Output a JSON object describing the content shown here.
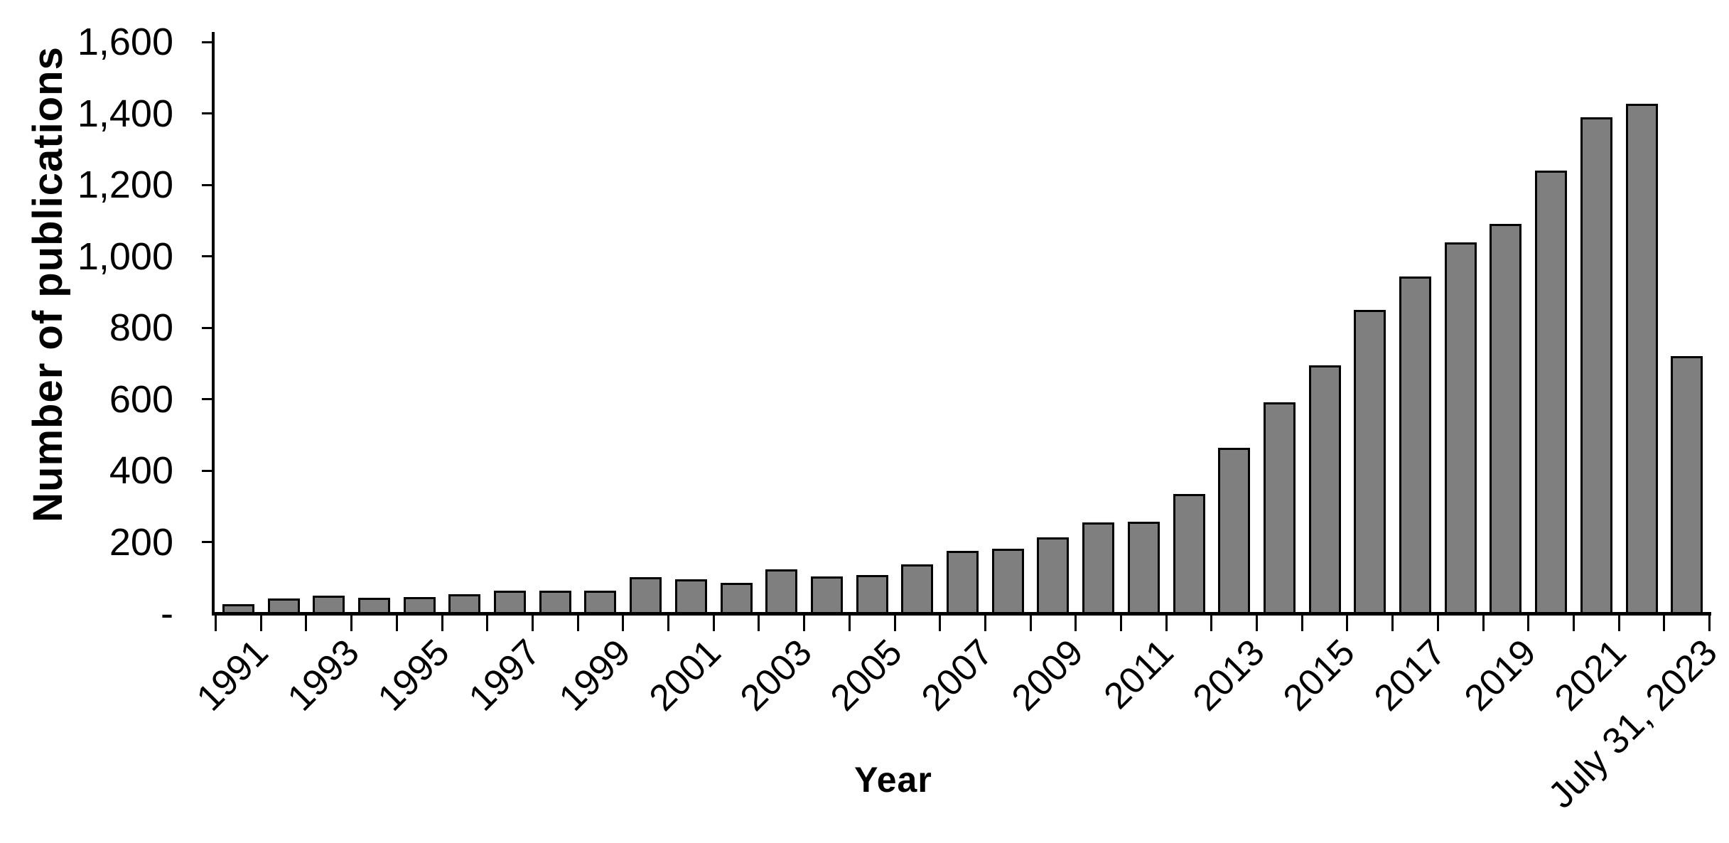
{
  "chart_data": {
    "type": "bar",
    "title": "",
    "xlabel": "Year",
    "ylabel": "Number of publications",
    "categories": [
      "1991",
      "1992",
      "1993",
      "1994",
      "1995",
      "1996",
      "1997",
      "1998",
      "1999",
      "2000",
      "2001",
      "2002",
      "2003",
      "2004",
      "2005",
      "2006",
      "2007",
      "2008",
      "2009",
      "2010",
      "2011",
      "2012",
      "2013",
      "2014",
      "2015",
      "2016",
      "2017",
      "2018",
      "2019",
      "2020",
      "2021",
      "2022",
      "July 31, 2023"
    ],
    "values": [
      21,
      38,
      45,
      40,
      41,
      50,
      60,
      60,
      59,
      98,
      91,
      82,
      119,
      99,
      103,
      134,
      172,
      178,
      209,
      251,
      252,
      330,
      459,
      588,
      691,
      846,
      940,
      1035,
      1087,
      1236,
      1385,
      1423,
      716
    ],
    "x_tick_labels": [
      "1991",
      "1993",
      "1995",
      "1997",
      "1999",
      "2001",
      "2003",
      "2005",
      "2007",
      "2009",
      "2011",
      "2013",
      "2015",
      "2017",
      "2019",
      "2021",
      "July 31, 2023"
    ],
    "x_tick_every": 2,
    "y_ticks": [
      {
        "value": 0,
        "label": "-"
      },
      {
        "value": 200,
        "label": "200"
      },
      {
        "value": 400,
        "label": "400"
      },
      {
        "value": 600,
        "label": "600"
      },
      {
        "value": 800,
        "label": "800"
      },
      {
        "value": 1000,
        "label": "1,000"
      },
      {
        "value": 1200,
        "label": "1,200"
      },
      {
        "value": 1400,
        "label": "1,400"
      },
      {
        "value": 1600,
        "label": "1,600"
      }
    ],
    "ylim": [
      0,
      1600
    ],
    "grid": "off",
    "legend": "none",
    "bar_color": "#7f7f7f",
    "bar_border_color": "#000000",
    "axis_color": "#000000",
    "background_color": "#ffffff"
  }
}
